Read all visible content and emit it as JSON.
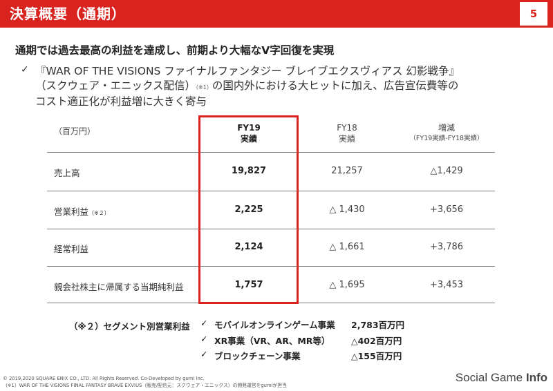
{
  "header": {
    "title": "決算概要（通期）",
    "page_number": "5"
  },
  "headline": "通期では過去最高の利益を達成し、前期より大幅なV字回復を実現",
  "bullet": {
    "check": "✓",
    "line1": "『WAR OF THE VISIONS ファイナルファンタジー ブレイブエクスヴィアス 幻影戦争』",
    "line2_a": "（スクウェア・エニックス配信）",
    "line2_note": "（※1）",
    "line2_b": "の国内外における大ヒットに加え、広告宣伝費等の",
    "line3": "コスト適正化が利益増に大きく寄与"
  },
  "table": {
    "unit": "（百万円）",
    "col1": {
      "line1": "FY19",
      "line2": "実績"
    },
    "col2": {
      "line1": "FY18",
      "line2": "実績"
    },
    "col3": {
      "line1": "増減",
      "line2": "（FY19実績-FY18実績）"
    },
    "rows": [
      {
        "label": "売上高",
        "note": "",
        "fy19": "19,827",
        "fy18": "21,257",
        "diff": "△1,429"
      },
      {
        "label": "営業利益",
        "note": "（※２）",
        "fy19": "2,225",
        "fy18": "△ 1,430",
        "diff": "+3,656"
      },
      {
        "label": "経常利益",
        "note": "",
        "fy19": "2,124",
        "fy18": "△ 1,661",
        "diff": "+3,786"
      },
      {
        "label": "親会社株主に帰属する当期純利益",
        "note": "",
        "fy19": "1,757",
        "fy18": "△ 1,695",
        "diff": "+3,453"
      }
    ]
  },
  "segment": {
    "title": "（※２）セグメント別営業利益",
    "items": [
      {
        "check": "✓",
        "name": "モバイルオンラインゲーム事業",
        "value": "2,783百万円"
      },
      {
        "check": "✓",
        "name": "XR事業（VR、AR、MR等）",
        "value": "△402百万円"
      },
      {
        "check": "✓",
        "name": "ブロックチェーン事業",
        "value": "△155百万円"
      }
    ]
  },
  "footer": {
    "copyright1": "© 2019,2020 SQUARE ENIX CO., LTD. All Rights Reserved. Co-Developed by gumi Inc.",
    "copyright2": "（※1）WAR OF THE VISIONS FINAL FANTASY BRAVE EXVIUS（販売/配信元：スクウェア・エニックス）の開発運営をgumiが担当",
    "logo_a": "Social Game ",
    "logo_b": "Info"
  },
  "colors": {
    "accent": "#d9231f"
  }
}
